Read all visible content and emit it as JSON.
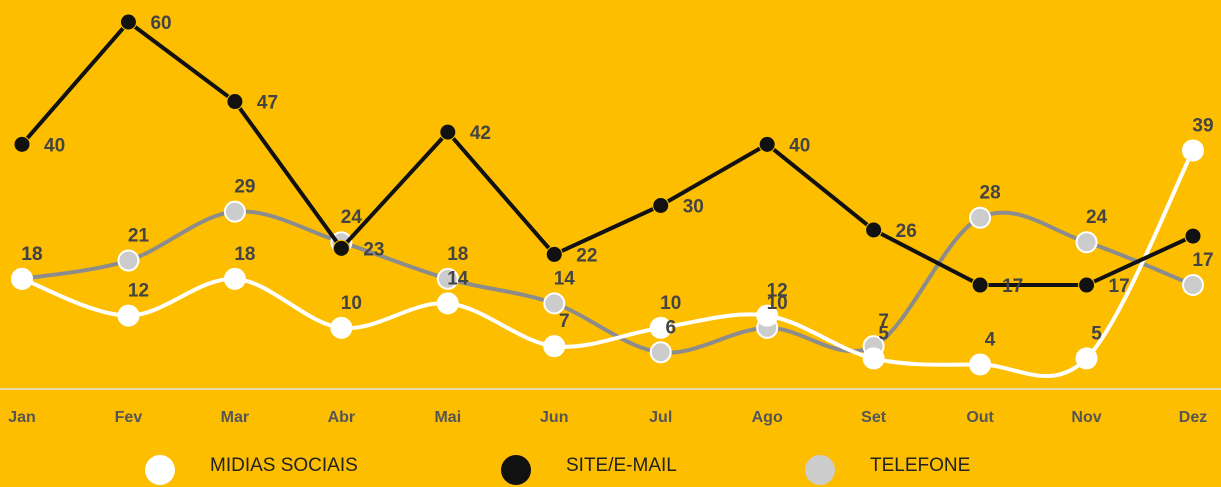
{
  "chart_data": {
    "type": "line",
    "categories": [
      "Jan",
      "Fev",
      "Mar",
      "Abr",
      "Mai",
      "Jun",
      "Jul",
      "Ago",
      "Set",
      "Out",
      "Nov",
      "Dez"
    ],
    "ylim": [
      0,
      60
    ],
    "series": [
      {
        "name": "MIDIAS SOCIAIS",
        "color": "#ffffff",
        "smooth": true,
        "values": [
          18,
          12,
          18,
          10,
          14,
          7,
          10,
          12,
          5,
          4,
          5,
          39
        ]
      },
      {
        "name": "SITE/E-MAIL",
        "color": "#111111",
        "smooth": false,
        "values": [
          40,
          60,
          47,
          23,
          42,
          22,
          30,
          40,
          26,
          17,
          17,
          25
        ]
      },
      {
        "name": "TELEFONE",
        "color": "#8c8c8c",
        "marker": "#cccccc",
        "smooth": true,
        "values": [
          18,
          21,
          29,
          24,
          18,
          14,
          6,
          10,
          7,
          28,
          24,
          17
        ]
      }
    ]
  }
}
